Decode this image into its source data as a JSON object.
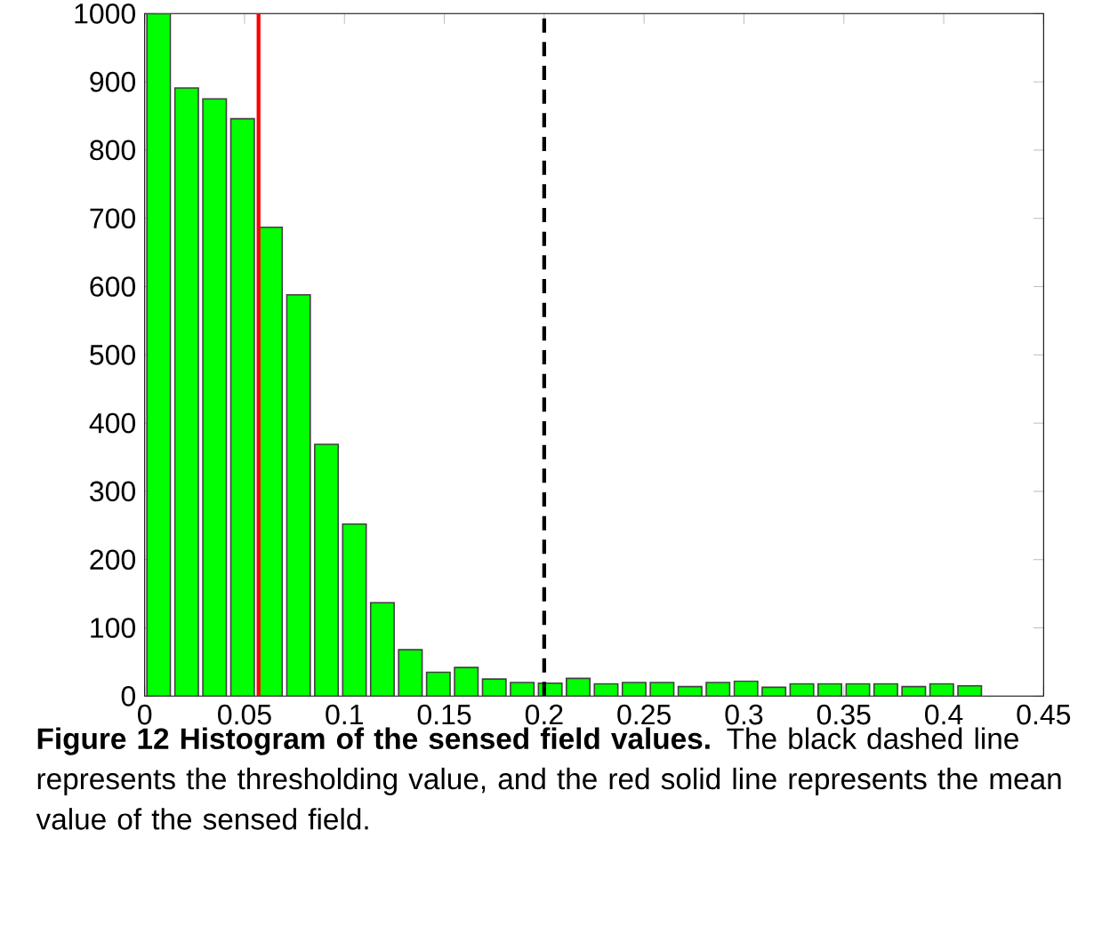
{
  "chart_data": {
    "type": "histogram",
    "bins": [
      0,
      0.014,
      0.028,
      0.042,
      0.056,
      0.07,
      0.084,
      0.098,
      0.112,
      0.126,
      0.14,
      0.154,
      0.168,
      0.182,
      0.196,
      0.21,
      0.224,
      0.238,
      0.252,
      0.266,
      0.28,
      0.294,
      0.308,
      0.322,
      0.336,
      0.35,
      0.364,
      0.378,
      0.392,
      0.406,
      0.42
    ],
    "values": [
      1000,
      891,
      875,
      846,
      687,
      588,
      369,
      252,
      137,
      68,
      35,
      42,
      25,
      20,
      19,
      26,
      18,
      20,
      20,
      14,
      20,
      22,
      13,
      18,
      18,
      18,
      18,
      14,
      18,
      15
    ],
    "color": "#00ff00",
    "xlim": [
      0,
      0.45
    ],
    "xticks": [
      0,
      0.05,
      0.1,
      0.15,
      0.2,
      0.25,
      0.3,
      0.35,
      0.4,
      0.45
    ],
    "ylim": [
      0,
      1000
    ],
    "yticks": [
      0,
      100,
      200,
      300,
      400,
      500,
      600,
      700,
      800,
      900,
      1000
    ],
    "ref_lines": [
      {
        "axis": "x",
        "value": 0.2,
        "color": "#000000",
        "line_style": "dashed"
      },
      {
        "axis": "x",
        "value": 0.057,
        "color": "#ff0000",
        "line_style": "solid"
      }
    ],
    "annotations": [
      "**Figure 12 Histogram of the sensed field values.** The black dashed line represents the thresholding value, and the red solid line represents the mean value of the sensed field."
    ]
  }
}
